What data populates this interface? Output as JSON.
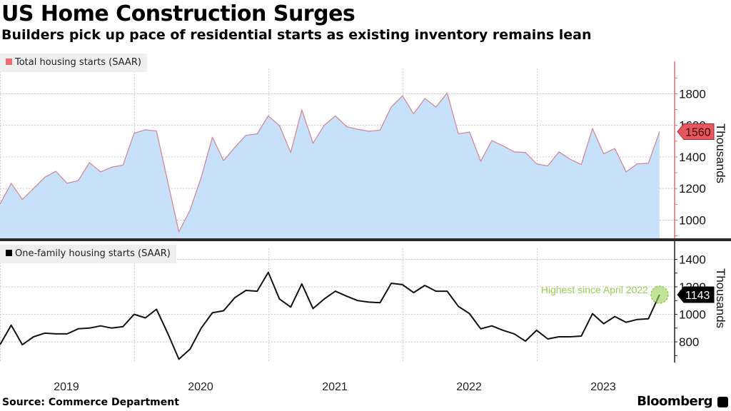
{
  "header": {
    "title": "US Home Construction Surges",
    "subtitle": "Builders pick up pace of residential starts as existing inventory remains lean"
  },
  "footer": {
    "source": "Source: Commerce Department",
    "brand": "Bloomberg"
  },
  "colors": {
    "total_line": "#d18b97",
    "total_fill": "#c8e1fb",
    "total_legend": "#f06a73",
    "total_axis": "#d9707a",
    "single_line": "#111111",
    "annotation": "#9acd55"
  },
  "chart_data": [
    {
      "type": "area",
      "title": "Total housing starts (SAAR)",
      "legend": [
        "Total housing starts (SAAR)"
      ],
      "ylabel": "Thousands",
      "ylim": [
        880,
        1960
      ],
      "yticks": [
        1000,
        1200,
        1400,
        1600,
        1800
      ],
      "xtick_labels": [
        "2019",
        "2020",
        "2021",
        "2022",
        "2023"
      ],
      "grid": true,
      "last_value_label": "1560",
      "series": [
        {
          "name": "Total housing starts (SAAR)",
          "values": [
            1102,
            1233,
            1131,
            1200,
            1271,
            1309,
            1233,
            1250,
            1364,
            1305,
            1335,
            1348,
            1550,
            1572,
            1564,
            1245,
            925,
            1063,
            1271,
            1525,
            1377,
            1460,
            1537,
            1546,
            1660,
            1598,
            1428,
            1698,
            1487,
            1600,
            1660,
            1592,
            1575,
            1563,
            1570,
            1716,
            1787,
            1673,
            1770,
            1716,
            1805,
            1546,
            1558,
            1373,
            1504,
            1470,
            1432,
            1428,
            1356,
            1343,
            1432,
            1385,
            1352,
            1580,
            1420,
            1453,
            1305,
            1356,
            1360,
            1560
          ]
        }
      ]
    },
    {
      "type": "line",
      "title": "One-family housing starts (SAAR)",
      "legend": [
        "One-family housing starts (SAAR)"
      ],
      "ylabel": "Thousands",
      "ylim": [
        650,
        1480
      ],
      "yticks": [
        800,
        1000,
        1200,
        1400
      ],
      "xtick_labels": [
        "2019",
        "2020",
        "2021",
        "2022",
        "2023"
      ],
      "grid": true,
      "last_value_label": "1143",
      "annotation": "Highest since April 2022",
      "series": [
        {
          "name": "One-family housing starts (SAAR)",
          "values": [
            779,
            921,
            779,
            837,
            863,
            858,
            858,
            895,
            900,
            916,
            900,
            911,
            1000,
            974,
            1037,
            863,
            674,
            747,
            900,
            1011,
            1026,
            1121,
            1174,
            1168,
            1305,
            1111,
            1053,
            1221,
            1042,
            1111,
            1168,
            1132,
            1100,
            1089,
            1084,
            1226,
            1216,
            1158,
            1210,
            1168,
            1168,
            1058,
            1005,
            895,
            916,
            884,
            858,
            805,
            884,
            821,
            837,
            837,
            842,
            1005,
            932,
            984,
            942,
            963,
            968,
            1143
          ]
        }
      ]
    }
  ]
}
